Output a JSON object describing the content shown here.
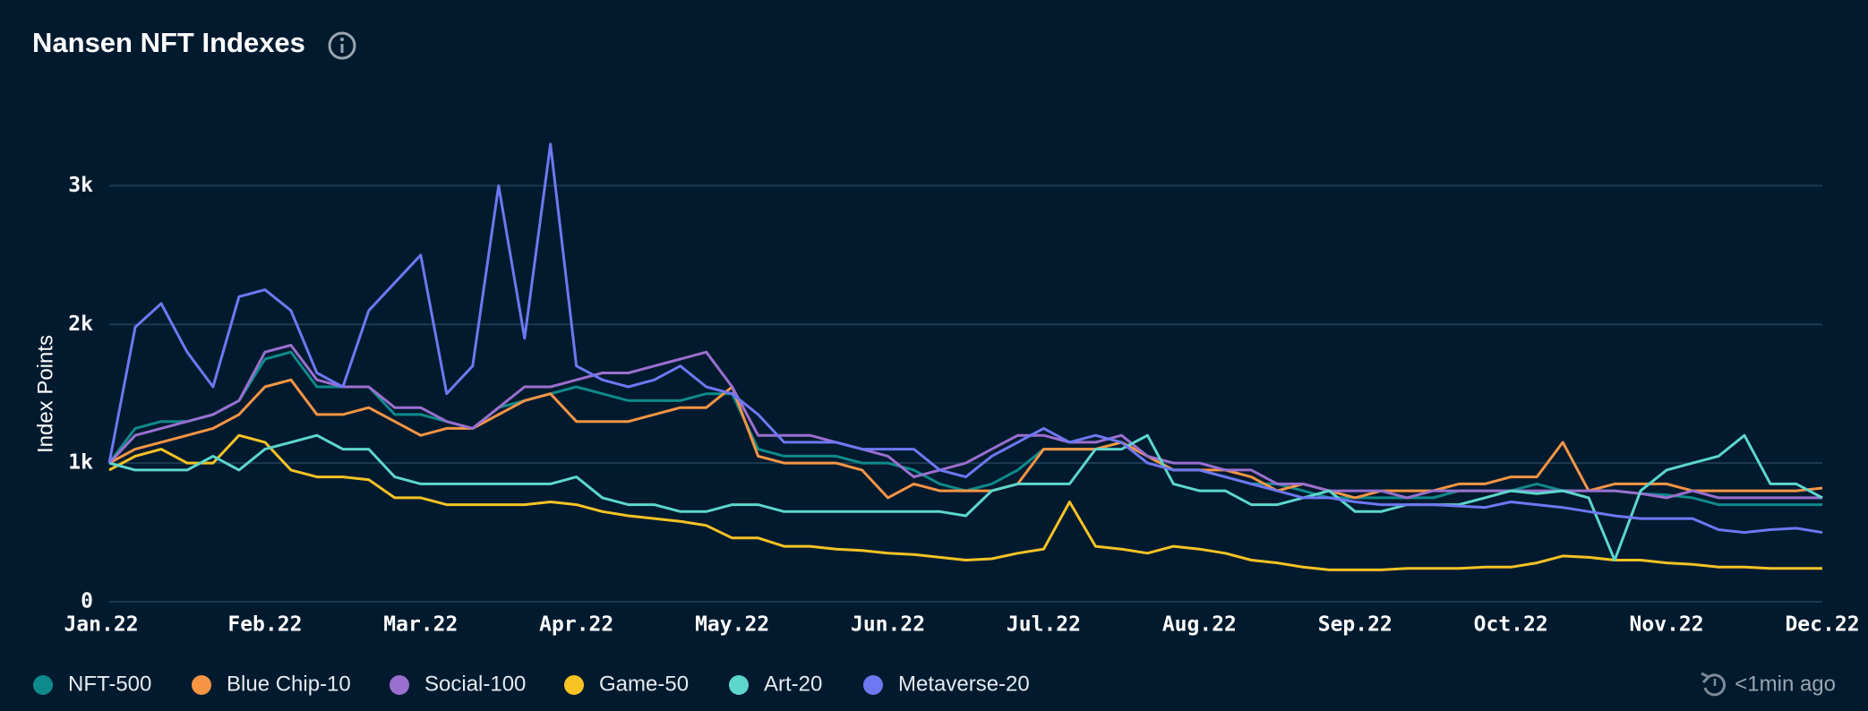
{
  "chart_data": {
    "type": "line",
    "title": "Nansen NFT Indexes",
    "y_label": "Index Points",
    "updated": "<1min ago",
    "categories": [
      "Jan.22",
      null,
      null,
      null,
      null,
      null,
      "Feb.22",
      null,
      null,
      null,
      null,
      null,
      "Mar.22",
      null,
      null,
      null,
      null,
      null,
      "Apr.22",
      null,
      null,
      null,
      null,
      null,
      "May.22",
      null,
      null,
      null,
      null,
      null,
      "Jun.22",
      null,
      null,
      null,
      null,
      null,
      "Jul.22",
      null,
      null,
      null,
      null,
      null,
      "Aug.22",
      null,
      null,
      null,
      null,
      null,
      "Sep.22",
      null,
      null,
      null,
      null,
      null,
      "Oct.22",
      null,
      null,
      null,
      null,
      null,
      "Nov.22",
      null,
      null,
      null,
      null,
      null,
      "Dec.22"
    ],
    "ylim": [
      0,
      3700
    ],
    "yticks": [
      0,
      {
        "value": 1000,
        "label": "1k"
      },
      {
        "value": 2000,
        "label": "2k"
      },
      {
        "value": 3000,
        "label": "3k"
      }
    ],
    "grid": true,
    "series": [
      {
        "name": "NFT-500",
        "color": "#0e8a8a",
        "values": [
          1000,
          1250,
          1300,
          1300,
          1350,
          1450,
          1750,
          1800,
          1550,
          1550,
          1550,
          1350,
          1350,
          1300,
          1250,
          1400,
          1450,
          1500,
          1550,
          1500,
          1450,
          1450,
          1450,
          1500,
          1500,
          1100,
          1050,
          1050,
          1050,
          1000,
          1000,
          950,
          850,
          800,
          850,
          950,
          1100,
          1100,
          1100,
          1150,
          1050,
          950,
          950,
          900,
          850,
          850,
          800,
          750,
          750,
          750,
          750,
          750,
          800,
          800,
          800,
          850,
          800,
          800,
          800,
          780,
          770,
          750,
          700,
          700,
          700,
          700,
          700
        ]
      },
      {
        "name": "Blue Chip-10",
        "color": "#f79545",
        "values": [
          1000,
          1100,
          1150,
          1200,
          1250,
          1350,
          1550,
          1600,
          1350,
          1350,
          1400,
          1300,
          1200,
          1250,
          1250,
          1350,
          1450,
          1500,
          1300,
          1300,
          1300,
          1350,
          1400,
          1400,
          1550,
          1050,
          1000,
          1000,
          1000,
          950,
          750,
          850,
          800,
          800,
          800,
          850,
          1100,
          1100,
          1100,
          1150,
          1050,
          950,
          950,
          950,
          900,
          800,
          850,
          800,
          750,
          800,
          800,
          800,
          850,
          850,
          900,
          900,
          1150,
          800,
          850,
          850,
          850,
          800,
          800,
          800,
          800,
          800,
          820
        ]
      },
      {
        "name": "Social-100",
        "color": "#9b6fd0",
        "values": [
          1000,
          1200,
          1250,
          1300,
          1350,
          1450,
          1800,
          1850,
          1600,
          1550,
          1550,
          1400,
          1400,
          1300,
          1250,
          1400,
          1550,
          1550,
          1600,
          1650,
          1650,
          1700,
          1750,
          1800,
          1550,
          1200,
          1200,
          1200,
          1150,
          1100,
          1050,
          900,
          950,
          1000,
          1100,
          1200,
          1200,
          1150,
          1150,
          1200,
          1050,
          1000,
          1000,
          950,
          950,
          850,
          850,
          800,
          800,
          800,
          750,
          800,
          800,
          800,
          800,
          800,
          800,
          800,
          800,
          780,
          750,
          800,
          750,
          750,
          750,
          750,
          750
        ]
      },
      {
        "name": "Game-50",
        "color": "#f7c325",
        "values": [
          950,
          1050,
          1100,
          1000,
          1000,
          1200,
          1150,
          950,
          900,
          900,
          880,
          750,
          750,
          700,
          700,
          700,
          700,
          720,
          700,
          650,
          620,
          600,
          580,
          550,
          460,
          460,
          400,
          400,
          380,
          370,
          350,
          340,
          320,
          300,
          310,
          350,
          380,
          720,
          400,
          380,
          350,
          400,
          380,
          350,
          300,
          280,
          250,
          230,
          230,
          230,
          240,
          240,
          240,
          250,
          250,
          280,
          330,
          320,
          300,
          300,
          280,
          270,
          250,
          250,
          240,
          240,
          240
        ]
      },
      {
        "name": "Art-20",
        "color": "#5dd6cc",
        "values": [
          1000,
          950,
          950,
          950,
          1050,
          950,
          1100,
          1150,
          1200,
          1100,
          1100,
          900,
          850,
          850,
          850,
          850,
          850,
          850,
          900,
          750,
          700,
          700,
          650,
          650,
          700,
          700,
          650,
          650,
          650,
          650,
          650,
          650,
          650,
          620,
          800,
          850,
          850,
          850,
          1100,
          1100,
          1200,
          850,
          800,
          800,
          700,
          700,
          750,
          800,
          650,
          650,
          700,
          700,
          700,
          750,
          800,
          780,
          800,
          750,
          300,
          800,
          950,
          1000,
          1050,
          1200,
          850,
          850,
          750
        ]
      },
      {
        "name": "Metaverse-20",
        "color": "#6e78f2",
        "values": [
          1000,
          1980,
          2150,
          1800,
          1550,
          2200,
          2250,
          2100,
          1650,
          1550,
          2100,
          2300,
          2500,
          1500,
          1700,
          3000,
          1900,
          3300,
          1700,
          1600,
          1550,
          1600,
          1700,
          1550,
          1500,
          1350,
          1150,
          1150,
          1150,
          1100,
          1100,
          1100,
          950,
          900,
          1050,
          1150,
          1250,
          1150,
          1200,
          1150,
          1000,
          950,
          950,
          900,
          850,
          800,
          750,
          750,
          720,
          700,
          700,
          700,
          690,
          680,
          720,
          700,
          680,
          650,
          620,
          600,
          600,
          600,
          520,
          500,
          520,
          530,
          500
        ]
      }
    ]
  }
}
